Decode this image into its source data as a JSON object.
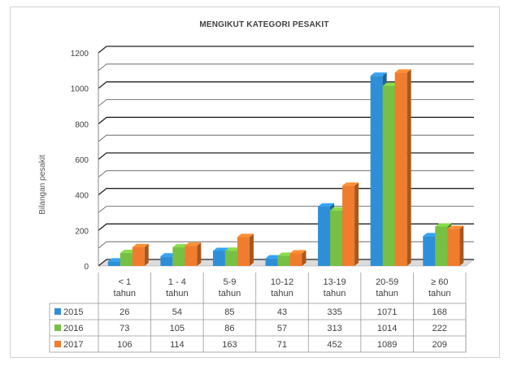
{
  "chart_data": {
    "type": "bar",
    "title": "MENGIKUT KATEGORI PESAKIT",
    "ylabel": "Bilangan pesakit",
    "xlabel": "",
    "ylim": [
      0,
      1200
    ],
    "yticks": [
      "0",
      "200",
      "400",
      "600",
      "800",
      "1000",
      "1200"
    ],
    "ytick_values": [
      0,
      200,
      400,
      600,
      800,
      1000,
      1200
    ],
    "grid": true,
    "legend": "data-table",
    "categories": [
      [
        "< 1",
        "tahun"
      ],
      [
        "1 - 4",
        "tahun"
      ],
      [
        "5-9",
        "tahun"
      ],
      [
        "10-12",
        "tahun"
      ],
      [
        "13-19",
        "tahun"
      ],
      [
        "20-59",
        "tahun"
      ],
      [
        "≥ 60",
        "tahun"
      ]
    ],
    "series": [
      {
        "name": "2015",
        "color": "#2e8fd8",
        "values": [
          26,
          54,
          85,
          43,
          335,
          1071,
          168
        ]
      },
      {
        "name": "2016",
        "color": "#76c043",
        "values": [
          73,
          105,
          86,
          57,
          313,
          1014,
          222
        ]
      },
      {
        "name": "2017",
        "color": "#f07c2d",
        "values": [
          106,
          114,
          163,
          71,
          452,
          1089,
          209
        ]
      }
    ]
  }
}
